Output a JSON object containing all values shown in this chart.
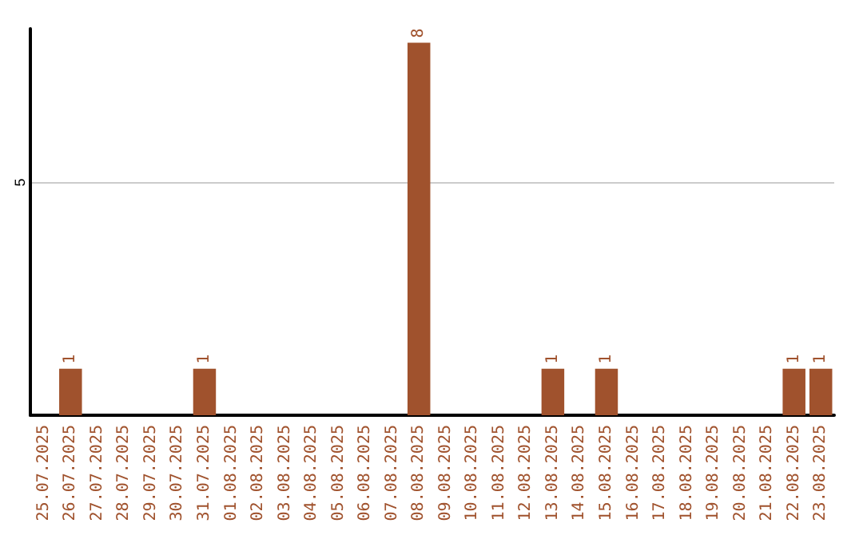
{
  "chart_data": {
    "type": "bar",
    "categories": [
      "25.07.2025",
      "26.07.2025",
      "27.07.2025",
      "28.07.2025",
      "29.07.2025",
      "30.07.2025",
      "31.07.2025",
      "01.08.2025",
      "02.08.2025",
      "03.08.2025",
      "04.08.2025",
      "05.08.2025",
      "06.08.2025",
      "07.08.2025",
      "08.08.2025",
      "09.08.2025",
      "10.08.2025",
      "11.08.2025",
      "12.08.2025",
      "13.08.2025",
      "14.08.2025",
      "15.08.2025",
      "16.08.2025",
      "17.08.2025",
      "18.08.2025",
      "19.08.2025",
      "20.08.2025",
      "21.08.2025",
      "22.08.2025",
      "23.08.2025"
    ],
    "values": [
      0,
      1,
      0,
      0,
      0,
      0,
      1,
      0,
      0,
      0,
      0,
      0,
      0,
      0,
      8,
      0,
      0,
      0,
      0,
      1,
      0,
      1,
      0,
      0,
      0,
      0,
      0,
      0,
      1,
      1
    ],
    "value_labels": [
      null,
      "1",
      null,
      null,
      null,
      null,
      "1",
      null,
      null,
      null,
      null,
      null,
      null,
      null,
      "8",
      null,
      null,
      null,
      null,
      "1",
      null,
      "1",
      null,
      null,
      null,
      null,
      null,
      null,
      "1",
      "1"
    ],
    "color": "#a0522d",
    "ylim": [
      0,
      8.3
    ],
    "yticks": [
      {
        "value": 0,
        "label": null
      },
      5
    ],
    "grid": "y"
  }
}
